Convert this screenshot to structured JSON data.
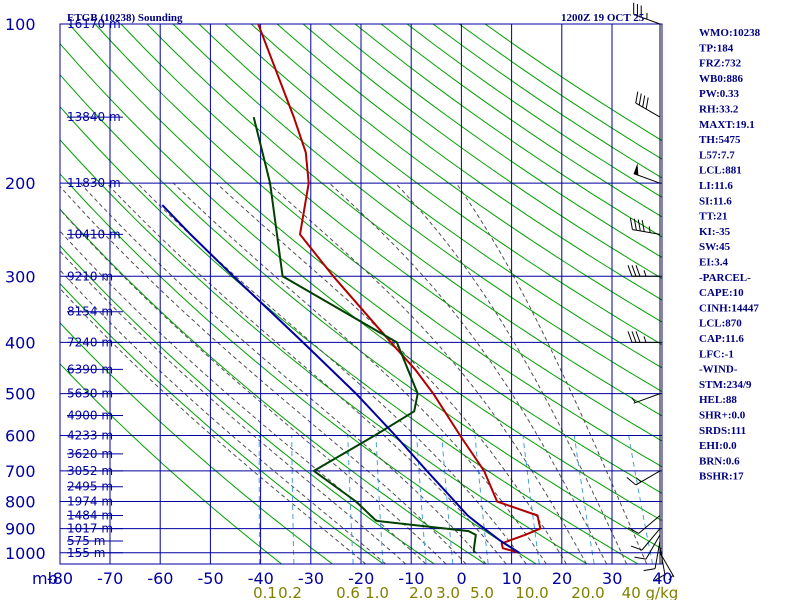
{
  "header": {
    "station": "ETGB (10238) Sounding",
    "time": "1200Z 19 OCT 25"
  },
  "indices": [
    "WMO:10238",
    "TP:184",
    "FRZ:732",
    "WB0:886",
    "PW:0.33",
    "RH:33.2",
    "MAXT:19.1",
    "TH:5475",
    "L57:7.7",
    "LCL:881",
    "LI:11.6",
    "SI:11.6",
    "TT:21",
    "KI:-35",
    "SW:45",
    "EI:3.4",
    "-PARCEL-",
    "CAPE:10",
    "CINH:14447",
    "LCL:870",
    "CAP:11.6",
    "LFC:-1",
    "-WIND-",
    "STM:234/9",
    "HEL:88",
    "SHR+:0.0",
    "SRDS:111",
    "EHI:0.0",
    "BRN:0.6",
    "BSHR:17"
  ],
  "colors": {
    "grid": "#0000a0",
    "axis_text": "#0000a0",
    "mixing_text": "#808000",
    "dry_adiabat": "#00a000",
    "moist_adiabat": "#505050",
    "mixing_ratio": "#4aa0d8",
    "temperature": "#b00000",
    "dewpoint": "#004000",
    "parcel": "#0000a0",
    "wind": "#000000"
  },
  "chart_data": {
    "type": "line",
    "title": "ETGB (10238) Sounding",
    "subtitle": "1200Z 19 OCT 25",
    "xlabel": "",
    "ylabel": "mb",
    "xlim": [
      -80,
      40
    ],
    "ylim": [
      1000,
      100
    ],
    "pressure_ticks": [
      "100",
      "200",
      "300",
      "400",
      "500",
      "600",
      "700",
      "800",
      "900",
      "1000"
    ],
    "pressure_tick_values": [
      100,
      200,
      300,
      400,
      500,
      600,
      700,
      800,
      900,
      1000
    ],
    "temp_ticks": [
      "-80",
      "-70",
      "-60",
      "-50",
      "-40",
      "-30",
      "-20",
      "-10",
      "0",
      "10",
      "20",
      "30",
      "40"
    ],
    "temp_tick_values": [
      -80,
      -70,
      -60,
      -50,
      -40,
      -30,
      -20,
      -10,
      0,
      10,
      20,
      30,
      40
    ],
    "mb_label": "mb",
    "height_labels": [
      {
        "p": 100,
        "text": "16170 m"
      },
      {
        "p": 150,
        "text": "13840 m"
      },
      {
        "p": 200,
        "text": "11830 m"
      },
      {
        "p": 250,
        "text": "10410 m"
      },
      {
        "p": 300,
        "text": "9210 m"
      },
      {
        "p": 350,
        "text": "8154 m"
      },
      {
        "p": 400,
        "text": "7240 m"
      },
      {
        "p": 450,
        "text": "6390 m"
      },
      {
        "p": 500,
        "text": "5630 m"
      },
      {
        "p": 550,
        "text": "4900 m"
      },
      {
        "p": 600,
        "text": "4233 m"
      },
      {
        "p": 650,
        "text": "3620 m"
      },
      {
        "p": 700,
        "text": "3052 m"
      },
      {
        "p": 750,
        "text": "2495 m"
      },
      {
        "p": 800,
        "text": "1974 m"
      },
      {
        "p": 850,
        "text": "1484 m"
      },
      {
        "p": 900,
        "text": "1017 m"
      },
      {
        "p": 950,
        "text": "575 m"
      },
      {
        "p": 1000,
        "text": "155 m"
      }
    ],
    "mixing_ratio_labels": [
      {
        "w": 0.1,
        "text": "0.1"
      },
      {
        "w": 0.2,
        "text": "0.2"
      },
      {
        "w": 0.6,
        "text": "0.6"
      },
      {
        "w": 1.0,
        "text": "1.0"
      },
      {
        "w": 2.0,
        "text": "2.0"
      },
      {
        "w": 3.0,
        "text": "3.0"
      },
      {
        "w": 5.0,
        "text": "5.0"
      },
      {
        "w": 10.0,
        "text": "10.0"
      },
      {
        "w": 20.0,
        "text": "20.0"
      },
      {
        "w": 40.0,
        "text": "40 g/kg"
      }
    ],
    "series": [
      {
        "name": "Temperature",
        "points": [
          {
            "p": 1000,
            "t": 10.2
          },
          {
            "p": 980,
            "t": 6.7
          },
          {
            "p": 960,
            "t": 6.3
          },
          {
            "p": 925,
            "t": 10.6
          },
          {
            "p": 900,
            "t": 13.4
          },
          {
            "p": 850,
            "t": 12.3
          },
          {
            "p": 800,
            "t": 3.7
          },
          {
            "p": 700,
            "t": -0.1
          },
          {
            "p": 600,
            "t": -6.3
          },
          {
            "p": 500,
            "t": -13.3
          },
          {
            "p": 450,
            "t": -17.9
          },
          {
            "p": 400,
            "t": -23.8
          },
          {
            "p": 300,
            "t": -37.9
          },
          {
            "p": 250,
            "t": -46.2
          },
          {
            "p": 200,
            "t": -46.5
          },
          {
            "p": 175,
            "t": -48.3
          },
          {
            "p": 150,
            "t": -52.1
          },
          {
            "p": 100,
            "t": -62.9
          }
        ]
      },
      {
        "name": "Dewpoint",
        "points": [
          {
            "p": 1000,
            "t": 1.3
          },
          {
            "p": 990,
            "t": 1.0
          },
          {
            "p": 925,
            "t": 0.8
          },
          {
            "p": 910,
            "t": -0.8
          },
          {
            "p": 870,
            "t": -19.6
          },
          {
            "p": 800,
            "t": -24.4
          },
          {
            "p": 700,
            "t": -34.0
          },
          {
            "p": 600,
            "t": -23.3
          },
          {
            "p": 540,
            "t": -16.4
          },
          {
            "p": 500,
            "t": -16.4
          },
          {
            "p": 400,
            "t": -22.6
          },
          {
            "p": 300,
            "t": -48.0
          },
          {
            "p": 200,
            "t": -54.2
          },
          {
            "p": 150,
            "t": -60.1
          }
        ]
      },
      {
        "name": "Parcel",
        "points": [
          {
            "p": 1000,
            "t": 10.2
          },
          {
            "p": 950,
            "t": 6.0
          },
          {
            "p": 880,
            "t": 0.7
          },
          {
            "p": 850,
            "t": -1.6
          },
          {
            "p": 700,
            "t": -11.5
          },
          {
            "p": 600,
            "t": -19.2
          },
          {
            "p": 500,
            "t": -28.7
          },
          {
            "p": 400,
            "t": -41.3
          },
          {
            "p": 300,
            "t": -57.8
          },
          {
            "p": 250,
            "t": -68.0
          },
          {
            "p": 220,
            "t": -74.8
          }
        ]
      }
    ],
    "winds": [
      {
        "p": 1000,
        "dir": 150,
        "spd": 5
      },
      {
        "p": 975,
        "dir": 170,
        "spd": 10
      },
      {
        "p": 950,
        "dir": 190,
        "spd": 10
      },
      {
        "p": 925,
        "dir": 210,
        "spd": 10
      },
      {
        "p": 900,
        "dir": 220,
        "spd": 10
      },
      {
        "p": 850,
        "dir": 230,
        "spd": 10
      },
      {
        "p": 700,
        "dir": 240,
        "spd": 15
      },
      {
        "p": 500,
        "dir": 250,
        "spd": 5
      },
      {
        "p": 400,
        "dir": 270,
        "spd": 35
      },
      {
        "p": 300,
        "dir": 270,
        "spd": 35
      },
      {
        "p": 250,
        "dir": 280,
        "spd": 45
      },
      {
        "p": 200,
        "dir": 290,
        "spd": 50
      },
      {
        "p": 150,
        "dir": 300,
        "spd": 40
      },
      {
        "p": 100,
        "dir": 290,
        "spd": 35
      }
    ]
  }
}
